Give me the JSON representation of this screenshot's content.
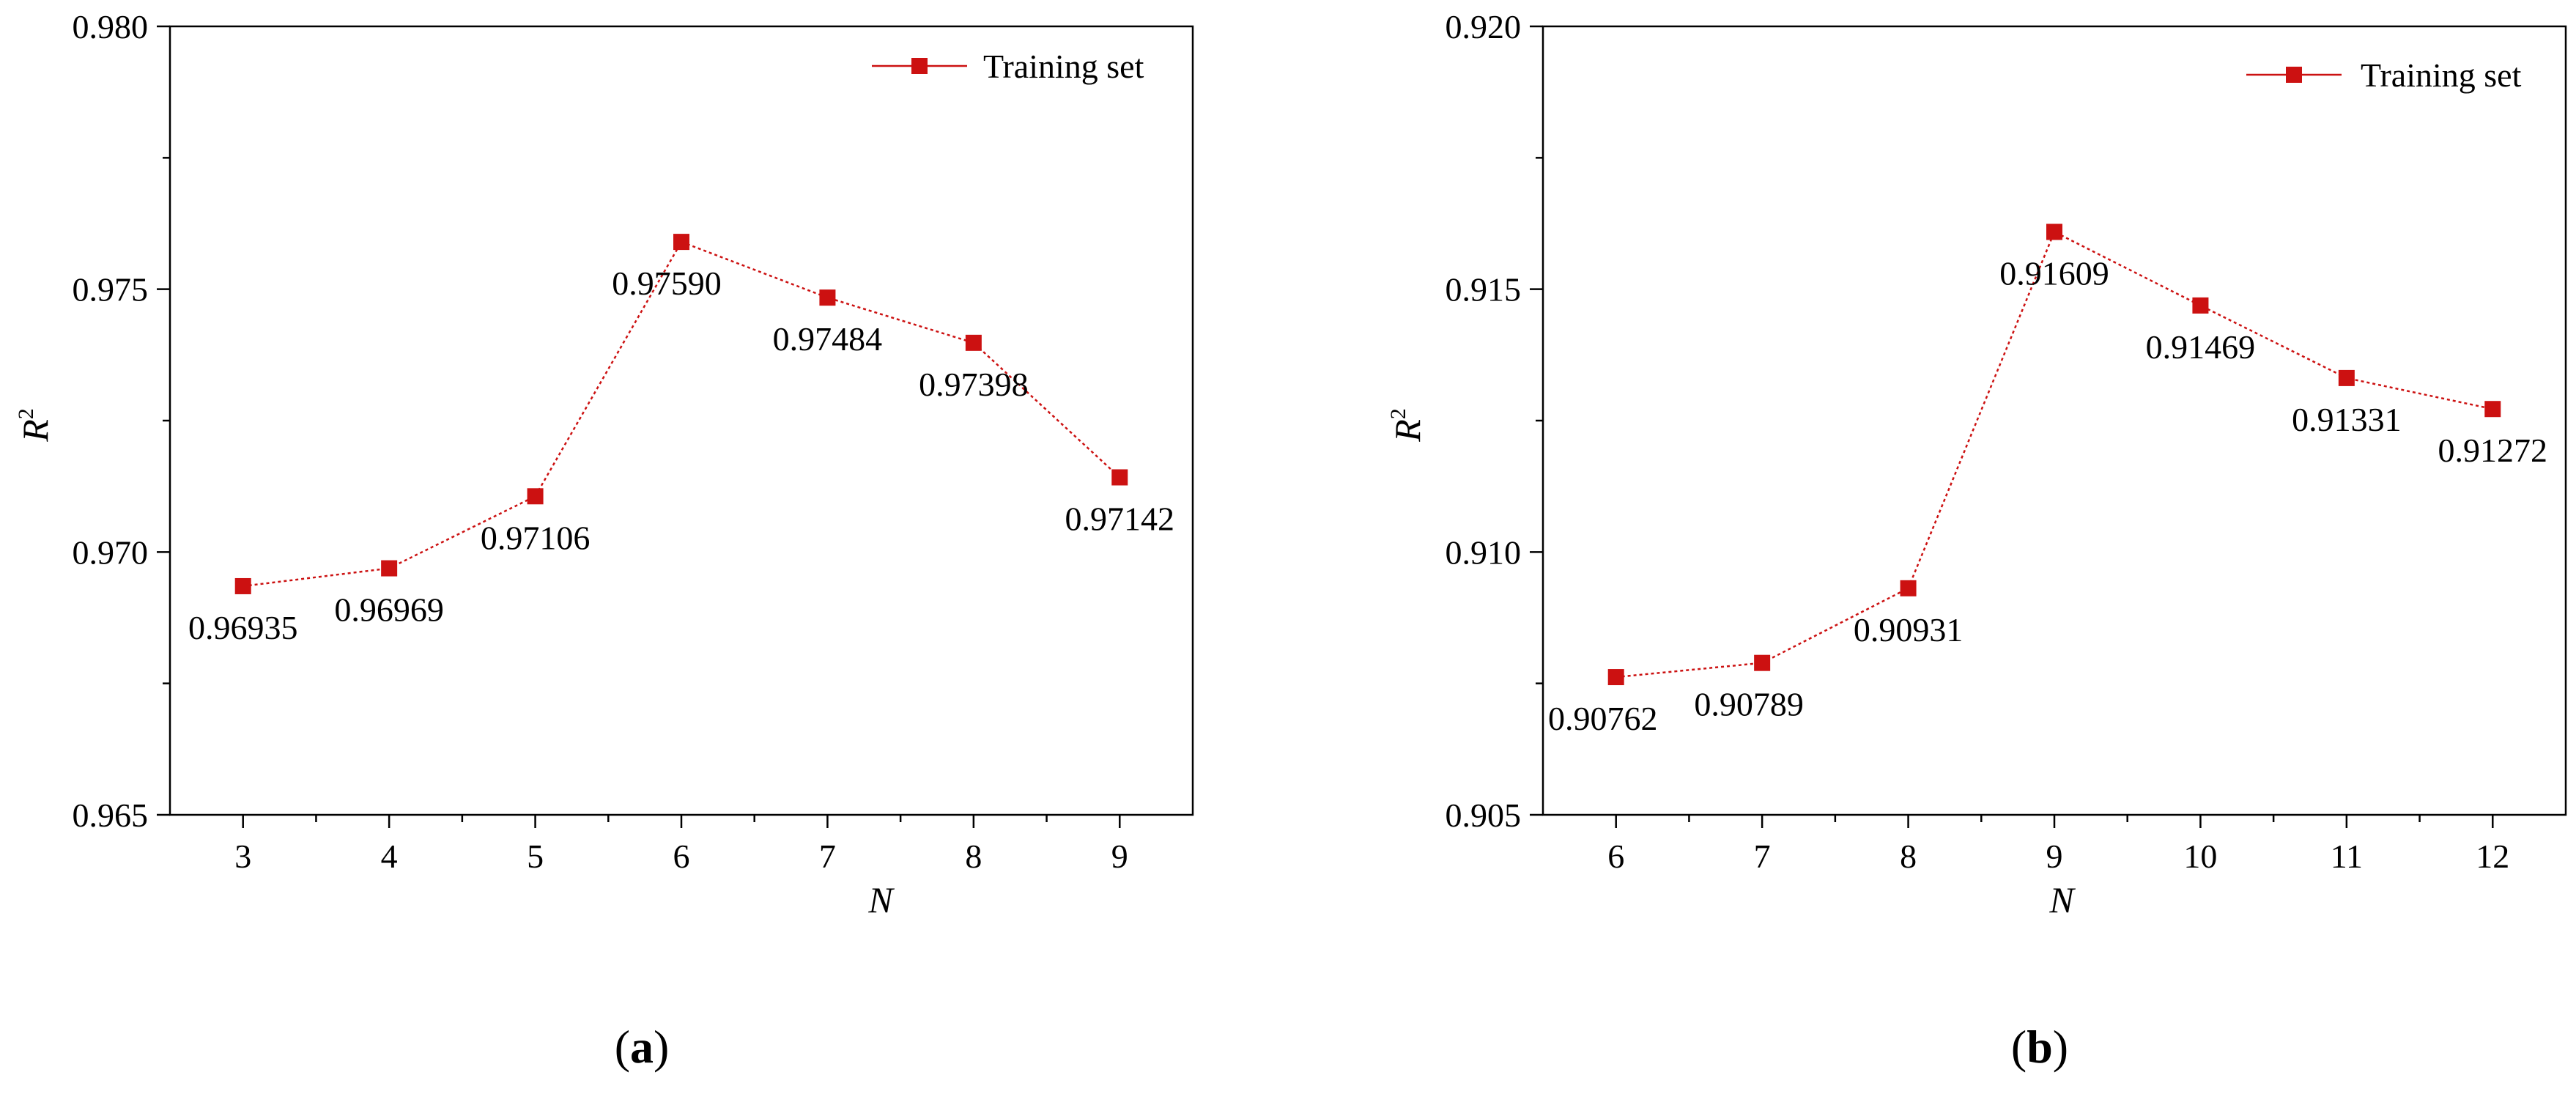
{
  "chart_data": [
    {
      "type": "line",
      "panel_label": "a",
      "xlabel": "N",
      "ylabel": "R",
      "ylabel_superscript": "2",
      "x": [
        3,
        4,
        5,
        6,
        7,
        8,
        9
      ],
      "xticks": [
        "3",
        "4",
        "5",
        "6",
        "7",
        "8",
        "9"
      ],
      "xlim": [
        2.5,
        9.5
      ],
      "ylim": [
        0.965,
        0.98
      ],
      "yticks": [
        "0.965",
        "0.970",
        "0.975",
        "0.980"
      ],
      "series": [
        {
          "name": "Training set",
          "color": "#cc1111",
          "marker": "square",
          "line_style": "dotted",
          "values": [
            0.96935,
            0.96969,
            0.97106,
            0.9759,
            0.97484,
            0.97398,
            0.97142
          ],
          "labels": [
            "0.96935",
            "0.96969",
            "0.97106",
            "0.97590",
            "0.97484",
            "0.97398",
            "0.97142"
          ]
        }
      ],
      "legend_position": "top-right",
      "grid": false
    },
    {
      "type": "line",
      "panel_label": "b",
      "xlabel": "N",
      "ylabel": "R",
      "ylabel_superscript": "2",
      "x": [
        6,
        7,
        8,
        9,
        10,
        11,
        12
      ],
      "xticks": [
        "6",
        "7",
        "8",
        "9",
        "10",
        "11",
        "12"
      ],
      "xlim": [
        5.5,
        12.5
      ],
      "ylim": [
        0.905,
        0.92
      ],
      "yticks": [
        "0.905",
        "0.910",
        "0.915",
        "0.920"
      ],
      "series": [
        {
          "name": "Training set",
          "color": "#cc1111",
          "marker": "square",
          "line_style": "dotted",
          "values": [
            0.90762,
            0.90789,
            0.90931,
            0.91609,
            0.91469,
            0.91331,
            0.91272
          ],
          "labels": [
            "0.90762",
            "0.90789",
            "0.90931",
            "0.91609",
            "0.91469",
            "0.91331",
            "0.91272"
          ]
        }
      ],
      "legend_position": "top-right",
      "grid": false
    }
  ]
}
